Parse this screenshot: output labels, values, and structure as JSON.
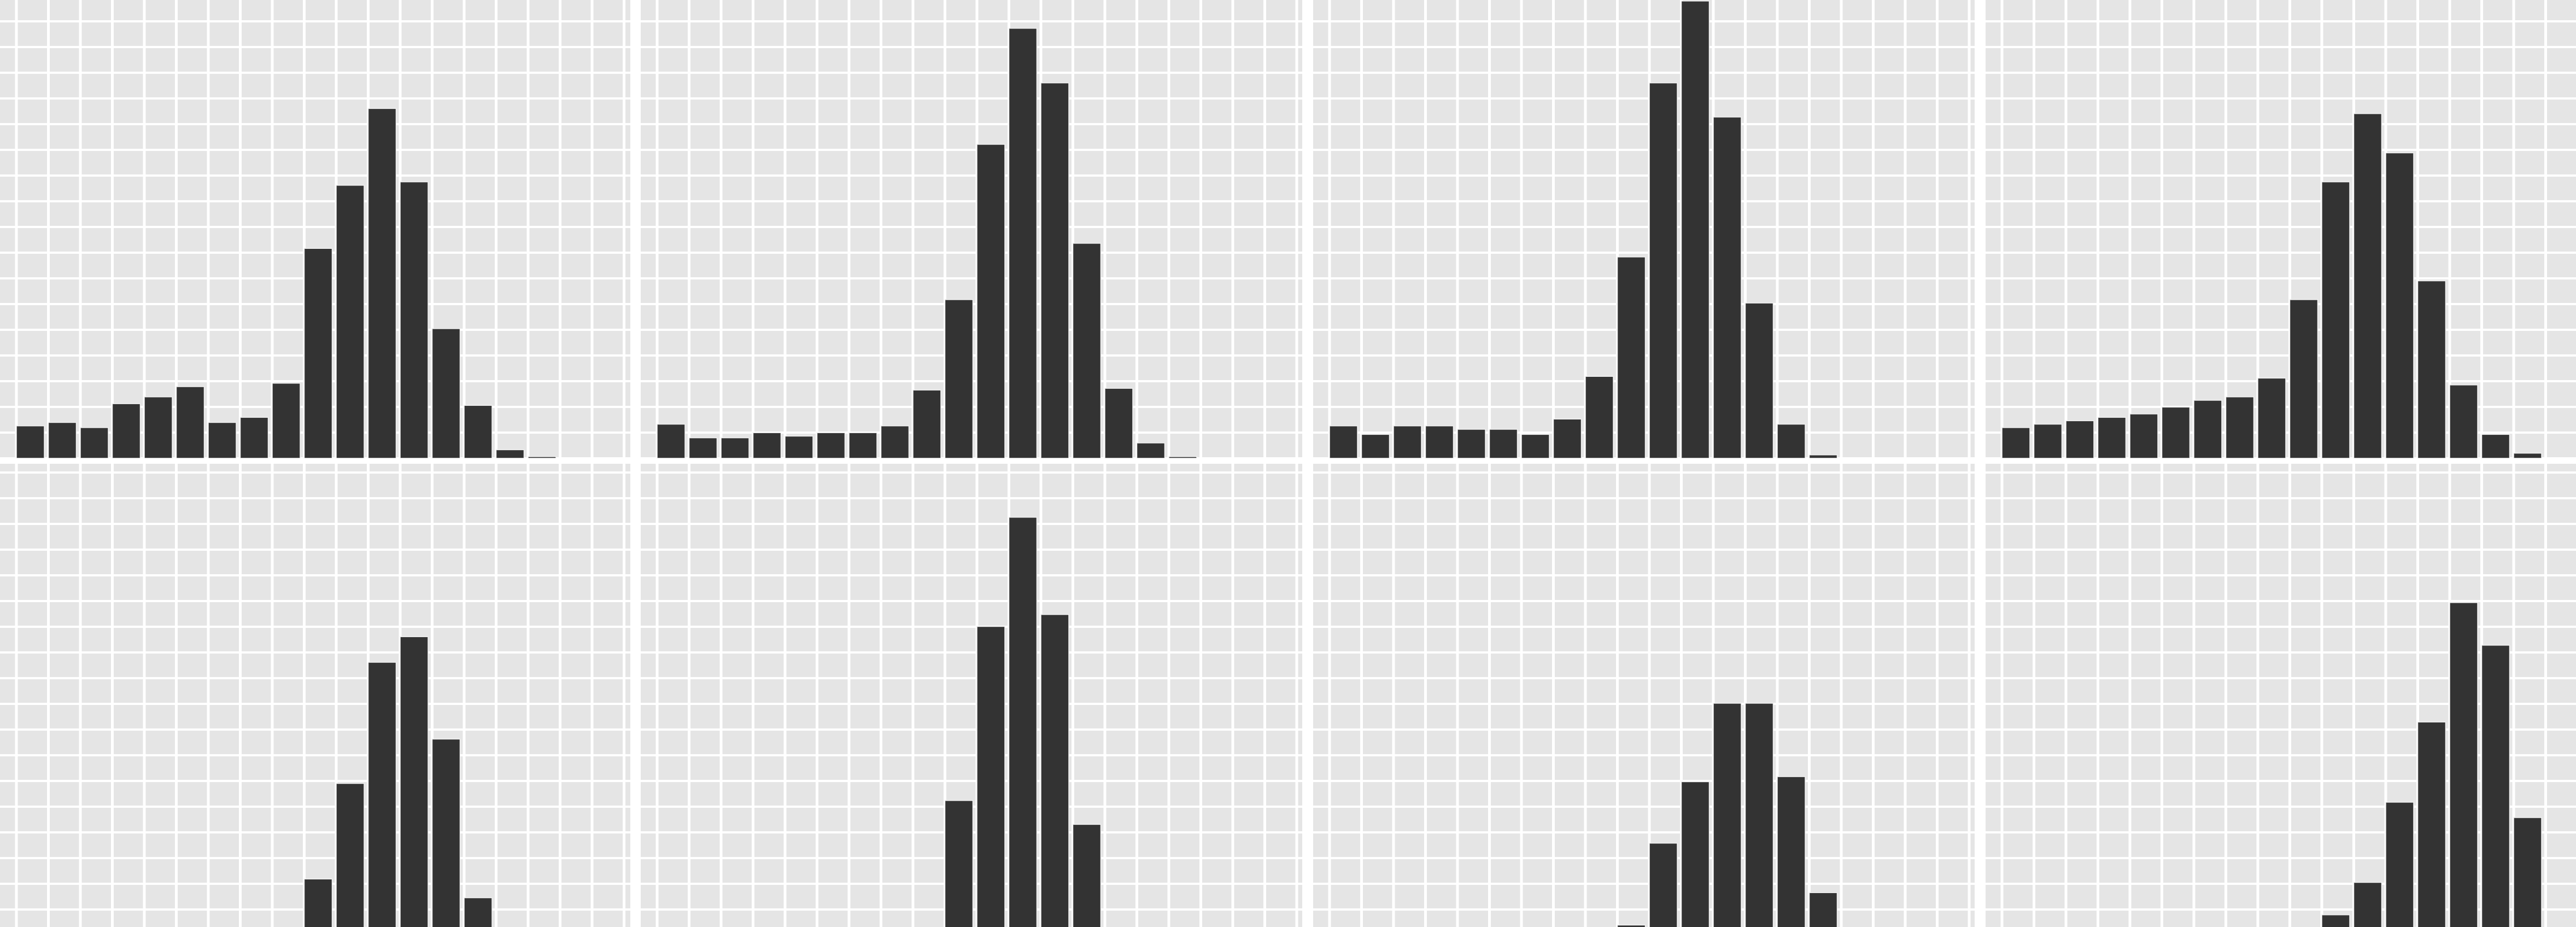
{
  "colors": {
    "panel_background": "#e5e5e5",
    "grid_major": "#ffffff",
    "grid_minor": "#f2f2f2",
    "bar_fill": "#333333",
    "figure_background": "#ffffff"
  },
  "chart_data": [
    {
      "type": "bar",
      "panel": 1,
      "grid": true,
      "xlim": [
        0,
        20
      ],
      "ylim": [
        0,
        260
      ],
      "series": [
        {
          "values": [
            19,
            21,
            18,
            32,
            36,
            42,
            21,
            24,
            44,
            123,
            160,
            205,
            162,
            76,
            31,
            5,
            1,
            0,
            0,
            0
          ]
        }
      ]
    },
    {
      "type": "bar",
      "panel": 2,
      "grid": true,
      "xlim": [
        0,
        20
      ],
      "ylim": [
        0,
        260
      ],
      "series": [
        {
          "values": [
            20,
            12,
            12,
            15,
            13,
            15,
            15,
            19,
            40,
            93,
            184,
            252,
            220,
            126,
            41,
            9,
            1,
            0,
            0,
            0
          ]
        }
      ]
    },
    {
      "type": "bar",
      "panel": 3,
      "grid": true,
      "xlim": [
        0,
        20
      ],
      "ylim": [
        0,
        260
      ],
      "series": [
        {
          "values": [
            19,
            14,
            19,
            19,
            17,
            17,
            14,
            23,
            48,
            118,
            220,
            268,
            200,
            91,
            20,
            2,
            0,
            0,
            0,
            0
          ]
        }
      ]
    },
    {
      "type": "bar",
      "panel": 4,
      "grid": true,
      "xlim": [
        0,
        20
      ],
      "ylim": [
        0,
        260
      ],
      "series": [
        {
          "values": [
            18,
            20,
            22,
            24,
            26,
            30,
            34,
            36,
            47,
            93,
            162,
            202,
            179,
            104,
            43,
            14,
            3,
            0,
            0,
            0
          ]
        }
      ]
    },
    {
      "type": "bar",
      "panel": 5,
      "grid": true,
      "xlim": [
        0,
        20
      ],
      "ylim": [
        0,
        260
      ],
      "series": [
        {
          "values": [
            0,
            0,
            0,
            0,
            0,
            0,
            0,
            0,
            10,
            48,
            104,
            175,
            190,
            130,
            37,
            0,
            0,
            0,
            0,
            0
          ]
        }
      ]
    },
    {
      "type": "bar",
      "panel": 6,
      "grid": true,
      "xlim": [
        0,
        20
      ],
      "ylim": [
        0,
        260
      ],
      "series": [
        {
          "values": [
            0,
            0,
            0,
            0,
            0,
            0,
            0,
            0,
            12,
            94,
            196,
            260,
            203,
            80,
            4,
            0,
            0,
            0,
            0,
            0
          ]
        }
      ]
    },
    {
      "type": "bar",
      "panel": 7,
      "grid": true,
      "xlim": [
        0,
        20
      ],
      "ylim": [
        0,
        260
      ],
      "series": [
        {
          "values": [
            0,
            0,
            0,
            0,
            0,
            1,
            15,
            19,
            10,
            21,
            69,
            105,
            151,
            151,
            108,
            40,
            0,
            0,
            0,
            0
          ]
        }
      ]
    },
    {
      "type": "bar",
      "panel": 8,
      "grid": true,
      "xlim": [
        0,
        20
      ],
      "ylim": [
        0,
        260
      ],
      "series": [
        {
          "values": [
            0,
            0,
            0,
            0,
            0,
            0,
            0,
            0,
            0,
            3,
            27,
            46,
            93,
            140,
            210,
            185,
            84,
            16,
            0,
            0
          ]
        }
      ]
    }
  ]
}
